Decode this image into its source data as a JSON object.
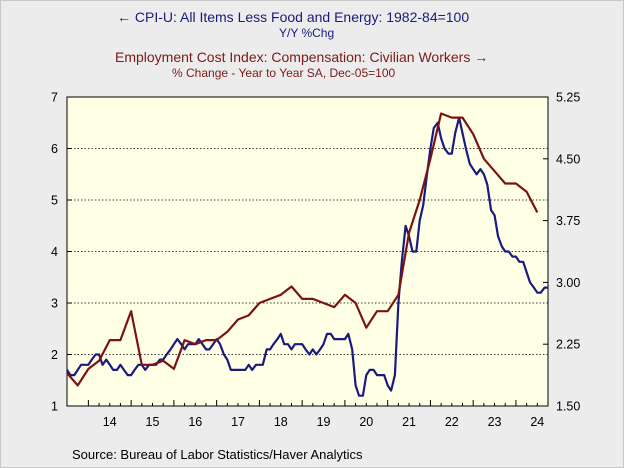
{
  "chart_data": {
    "type": "line",
    "title_left_series": "CPI-U: All Items Less Food and Energy: 1982-84=100",
    "subtitle_left_series": "Y/Y %Chg",
    "title_right_series": "Employment Cost Index: Compensation: Civilian Workers",
    "subtitle_right_series": "% Change - Year to Year    SA, Dec-05=100",
    "source": "Source:  Bureau of Labor Statistics/Haver Analytics",
    "x_ticks": [
      "14",
      "15",
      "16",
      "17",
      "18",
      "19",
      "20",
      "21",
      "22",
      "23",
      "24"
    ],
    "x_range": [
      2013.5,
      2024.75
    ],
    "y_left": {
      "ticks": [
        "1",
        "2",
        "3",
        "4",
        "5",
        "6",
        "7"
      ],
      "ylim": [
        1,
        7
      ]
    },
    "y_right": {
      "ticks": [
        "1.50",
        "2.25",
        "3.00",
        "3.75",
        "4.50",
        "5.25"
      ],
      "ylim": [
        1.5,
        5.25
      ]
    },
    "grid": "horizontal dotted",
    "series": [
      {
        "name": "CPI-U: All Items Less Food and Energy: 1982-84=100",
        "axis": "left",
        "color": "#1a1a80",
        "points": [
          [
            2013.5,
            1.7
          ],
          [
            2013.58,
            1.6
          ],
          [
            2013.67,
            1.6
          ],
          [
            2013.75,
            1.7
          ],
          [
            2013.83,
            1.8
          ],
          [
            2013.92,
            1.8
          ],
          [
            2014.0,
            1.8
          ],
          [
            2014.08,
            1.9
          ],
          [
            2014.17,
            2.0
          ],
          [
            2014.25,
            2.0
          ],
          [
            2014.33,
            1.8
          ],
          [
            2014.42,
            1.9
          ],
          [
            2014.5,
            1.8
          ],
          [
            2014.58,
            1.7
          ],
          [
            2014.67,
            1.7
          ],
          [
            2014.75,
            1.8
          ],
          [
            2014.83,
            1.7
          ],
          [
            2014.92,
            1.6
          ],
          [
            2015.0,
            1.6
          ],
          [
            2015.08,
            1.7
          ],
          [
            2015.17,
            1.8
          ],
          [
            2015.25,
            1.8
          ],
          [
            2015.33,
            1.7
          ],
          [
            2015.42,
            1.8
          ],
          [
            2015.5,
            1.8
          ],
          [
            2015.58,
            1.8
          ],
          [
            2015.67,
            1.9
          ],
          [
            2015.75,
            1.9
          ],
          [
            2015.83,
            2.0
          ],
          [
            2015.92,
            2.1
          ],
          [
            2016.0,
            2.2
          ],
          [
            2016.08,
            2.3
          ],
          [
            2016.17,
            2.2
          ],
          [
            2016.25,
            2.1
          ],
          [
            2016.33,
            2.2
          ],
          [
            2016.42,
            2.2
          ],
          [
            2016.5,
            2.2
          ],
          [
            2016.58,
            2.3
          ],
          [
            2016.67,
            2.2
          ],
          [
            2016.75,
            2.1
          ],
          [
            2016.83,
            2.1
          ],
          [
            2016.92,
            2.2
          ],
          [
            2017.0,
            2.3
          ],
          [
            2017.08,
            2.2
          ],
          [
            2017.17,
            2.0
          ],
          [
            2017.25,
            1.9
          ],
          [
            2017.33,
            1.7
          ],
          [
            2017.42,
            1.7
          ],
          [
            2017.5,
            1.7
          ],
          [
            2017.58,
            1.7
          ],
          [
            2017.67,
            1.7
          ],
          [
            2017.75,
            1.8
          ],
          [
            2017.83,
            1.7
          ],
          [
            2017.92,
            1.8
          ],
          [
            2018.0,
            1.8
          ],
          [
            2018.08,
            1.8
          ],
          [
            2018.17,
            2.1
          ],
          [
            2018.25,
            2.1
          ],
          [
            2018.33,
            2.2
          ],
          [
            2018.42,
            2.3
          ],
          [
            2018.5,
            2.4
          ],
          [
            2018.58,
            2.2
          ],
          [
            2018.67,
            2.2
          ],
          [
            2018.75,
            2.1
          ],
          [
            2018.83,
            2.2
          ],
          [
            2018.92,
            2.2
          ],
          [
            2019.0,
            2.2
          ],
          [
            2019.08,
            2.1
          ],
          [
            2019.17,
            2.0
          ],
          [
            2019.25,
            2.1
          ],
          [
            2019.33,
            2.0
          ],
          [
            2019.42,
            2.1
          ],
          [
            2019.5,
            2.2
          ],
          [
            2019.58,
            2.4
          ],
          [
            2019.67,
            2.4
          ],
          [
            2019.75,
            2.3
          ],
          [
            2019.83,
            2.3
          ],
          [
            2019.92,
            2.3
          ],
          [
            2020.0,
            2.3
          ],
          [
            2020.08,
            2.4
          ],
          [
            2020.17,
            2.1
          ],
          [
            2020.25,
            1.4
          ],
          [
            2020.33,
            1.2
          ],
          [
            2020.42,
            1.2
          ],
          [
            2020.5,
            1.6
          ],
          [
            2020.58,
            1.7
          ],
          [
            2020.67,
            1.7
          ],
          [
            2020.75,
            1.6
          ],
          [
            2020.83,
            1.6
          ],
          [
            2020.92,
            1.6
          ],
          [
            2021.0,
            1.4
          ],
          [
            2021.08,
            1.3
          ],
          [
            2021.17,
            1.6
          ],
          [
            2021.25,
            3.0
          ],
          [
            2021.33,
            3.8
          ],
          [
            2021.42,
            4.5
          ],
          [
            2021.5,
            4.3
          ],
          [
            2021.58,
            4.0
          ],
          [
            2021.67,
            4.0
          ],
          [
            2021.75,
            4.6
          ],
          [
            2021.83,
            4.9
          ],
          [
            2021.92,
            5.5
          ],
          [
            2022.0,
            6.0
          ],
          [
            2022.08,
            6.4
          ],
          [
            2022.17,
            6.5
          ],
          [
            2022.25,
            6.2
          ],
          [
            2022.33,
            6.0
          ],
          [
            2022.42,
            5.9
          ],
          [
            2022.5,
            5.9
          ],
          [
            2022.58,
            6.3
          ],
          [
            2022.67,
            6.6
          ],
          [
            2022.75,
            6.3
          ],
          [
            2022.83,
            6.0
          ],
          [
            2022.92,
            5.7
          ],
          [
            2023.0,
            5.6
          ],
          [
            2023.08,
            5.5
          ],
          [
            2023.17,
            5.6
          ],
          [
            2023.25,
            5.5
          ],
          [
            2023.33,
            5.3
          ],
          [
            2023.42,
            4.8
          ],
          [
            2023.5,
            4.7
          ],
          [
            2023.58,
            4.3
          ],
          [
            2023.67,
            4.1
          ],
          [
            2023.75,
            4.0
          ],
          [
            2023.83,
            4.0
          ],
          [
            2023.92,
            3.9
          ],
          [
            2024.0,
            3.9
          ],
          [
            2024.08,
            3.8
          ],
          [
            2024.17,
            3.8
          ],
          [
            2024.25,
            3.6
          ],
          [
            2024.33,
            3.4
          ],
          [
            2024.42,
            3.3
          ],
          [
            2024.5,
            3.2
          ],
          [
            2024.58,
            3.2
          ],
          [
            2024.67,
            3.3
          ],
          [
            2024.75,
            3.3
          ]
        ]
      },
      {
        "name": "Employment Cost Index: Compensation: Civilian Workers",
        "axis": "right",
        "color": "#7a1414",
        "points": [
          [
            2013.5,
            1.9
          ],
          [
            2013.75,
            1.75
          ],
          [
            2014.0,
            1.95
          ],
          [
            2014.25,
            2.05
          ],
          [
            2014.5,
            2.3
          ],
          [
            2014.75,
            2.3
          ],
          [
            2015.0,
            2.65
          ],
          [
            2015.25,
            2.0
          ],
          [
            2015.5,
            2.0
          ],
          [
            2015.75,
            2.05
          ],
          [
            2016.0,
            1.95
          ],
          [
            2016.25,
            2.3
          ],
          [
            2016.5,
            2.25
          ],
          [
            2016.75,
            2.3
          ],
          [
            2017.0,
            2.3
          ],
          [
            2017.25,
            2.4
          ],
          [
            2017.5,
            2.55
          ],
          [
            2017.75,
            2.6
          ],
          [
            2018.0,
            2.75
          ],
          [
            2018.25,
            2.8
          ],
          [
            2018.5,
            2.85
          ],
          [
            2018.75,
            2.95
          ],
          [
            2019.0,
            2.8
          ],
          [
            2019.25,
            2.8
          ],
          [
            2019.5,
            2.75
          ],
          [
            2019.75,
            2.7
          ],
          [
            2020.0,
            2.85
          ],
          [
            2020.25,
            2.75
          ],
          [
            2020.5,
            2.45
          ],
          [
            2020.75,
            2.65
          ],
          [
            2021.0,
            2.65
          ],
          [
            2021.25,
            2.85
          ],
          [
            2021.5,
            3.6
          ],
          [
            2021.75,
            4.0
          ],
          [
            2022.0,
            4.5
          ],
          [
            2022.25,
            5.05
          ],
          [
            2022.5,
            5.0
          ],
          [
            2022.75,
            5.0
          ],
          [
            2023.0,
            4.8
          ],
          [
            2023.25,
            4.5
          ],
          [
            2023.5,
            4.35
          ],
          [
            2023.75,
            4.2
          ],
          [
            2024.0,
            4.2
          ],
          [
            2024.25,
            4.1
          ],
          [
            2024.5,
            3.85
          ]
        ]
      }
    ]
  }
}
